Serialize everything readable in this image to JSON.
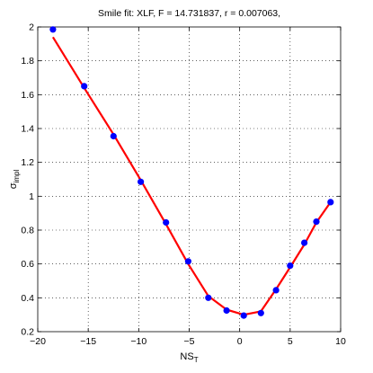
{
  "chart_data": {
    "type": "line",
    "title": "Smile fit: XLF, F = 14.731837, r = 0.007063,",
    "xlabel_main": "NS",
    "xlabel_sub": "T",
    "ylabel_main": "σ",
    "ylabel_sub": "impl",
    "xlim": [
      -20,
      10
    ],
    "ylim": [
      0.2,
      2.0
    ],
    "xticks": [
      -20,
      -15,
      -10,
      -5,
      0,
      5,
      10
    ],
    "yticks": [
      0.2,
      0.4,
      0.6,
      0.8,
      1,
      1.2,
      1.4,
      1.6,
      1.8,
      2
    ],
    "grid": true,
    "colors": {
      "fit": "#ff0000",
      "points": "#0000ff"
    },
    "series": [
      {
        "type": "scatter",
        "x": [
          -18.5,
          -15.4,
          -12.5,
          -9.8,
          -7.3,
          -5.1,
          -3.1,
          -1.3,
          0.4,
          2.1,
          3.6,
          5.0,
          6.4,
          7.6,
          9.0
        ],
        "y": [
          1.985,
          1.65,
          1.355,
          1.085,
          0.845,
          0.615,
          0.4,
          0.325,
          0.295,
          0.31,
          0.445,
          0.59,
          0.725,
          0.85,
          0.965
        ]
      },
      {
        "type": "line",
        "x": [
          -18.5,
          -15.4,
          -12.5,
          -9.8,
          -7.3,
          -5.1,
          -3.1,
          -1.3,
          0.4,
          2.1,
          3.6,
          5.0,
          6.4,
          7.6,
          9.0
        ],
        "y": [
          1.94,
          1.64,
          1.365,
          1.095,
          0.835,
          0.6,
          0.41,
          0.33,
          0.3,
          0.32,
          0.45,
          0.58,
          0.715,
          0.845,
          0.965
        ]
      }
    ]
  }
}
